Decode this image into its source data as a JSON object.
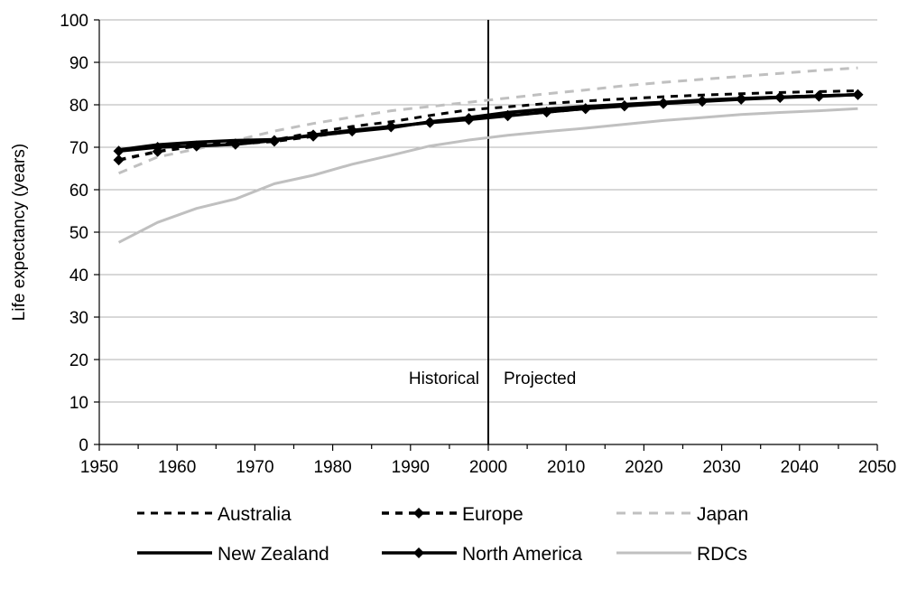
{
  "chart_data": {
    "type": "line",
    "title": "",
    "xlabel": "",
    "ylabel": "Life expectancy (years)",
    "xlim": [
      1950,
      2050
    ],
    "ylim": [
      0,
      100
    ],
    "xticks": [
      1950,
      1960,
      1970,
      1980,
      1990,
      2000,
      2010,
      2020,
      2030,
      2040,
      2050
    ],
    "yticks": [
      0,
      10,
      20,
      30,
      40,
      50,
      60,
      70,
      80,
      90,
      100
    ],
    "grid": "horizontal",
    "legend": "bottom",
    "divider": {
      "x": 2000,
      "left_label": "Historical",
      "right_label": "Projected"
    },
    "x": [
      1952.5,
      1957.5,
      1962.5,
      1967.5,
      1972.5,
      1977.5,
      1982.5,
      1987.5,
      1992.5,
      1997.5,
      2002.5,
      2007.5,
      2012.5,
      2017.5,
      2022.5,
      2027.5,
      2032.5,
      2037.5,
      2042.5,
      2047.5
    ],
    "series": [
      {
        "name": "Australia",
        "color": "#000000",
        "style": "dashed",
        "marker": "none",
        "values": [
          69.3,
          70.4,
          70.9,
          71.1,
          71.7,
          73.5,
          74.9,
          76.0,
          77.5,
          78.8,
          79.5,
          80.3,
          80.9,
          81.4,
          81.9,
          82.3,
          82.6,
          82.9,
          83.1,
          83.3
        ]
      },
      {
        "name": "Europe",
        "color": "#000000",
        "style": "dashed",
        "marker": "diamond",
        "values": [
          67.0,
          69.0,
          70.3,
          70.8,
          71.4,
          72.6,
          73.8,
          74.8,
          75.9,
          76.8,
          77.5,
          78.3,
          79.1,
          79.8,
          80.4,
          80.9,
          81.4,
          81.8,
          82.1,
          82.4
        ]
      },
      {
        "name": "Japan",
        "color": "#c0c0c0",
        "style": "dashed",
        "marker": "none",
        "values": [
          63.9,
          67.7,
          69.6,
          71.6,
          73.8,
          75.6,
          77.1,
          78.6,
          79.6,
          80.6,
          81.6,
          82.6,
          83.5,
          84.5,
          85.3,
          86.0,
          86.7,
          87.4,
          88.1,
          88.7
        ]
      },
      {
        "name": "New Zealand",
        "color": "#000000",
        "style": "solid",
        "marker": "none",
        "values": [
          69.4,
          70.6,
          71.2,
          71.6,
          71.8,
          72.7,
          73.7,
          74.6,
          76.0,
          77.0,
          78.2,
          79.0,
          79.6,
          80.1,
          80.6,
          81.1,
          81.5,
          81.8,
          82.1,
          82.4
        ]
      },
      {
        "name": "North America",
        "color": "#000000",
        "style": "solid",
        "marker": "diamond",
        "values": [
          69.1,
          70.0,
          70.3,
          70.7,
          71.6,
          72.9,
          74.0,
          74.9,
          75.8,
          76.5,
          77.4,
          78.3,
          79.1,
          79.7,
          80.3,
          80.8,
          81.3,
          81.7,
          82.0,
          82.4
        ]
      },
      {
        "name": "RDCs",
        "color": "#c0c0c0",
        "style": "solid",
        "marker": "none",
        "values": [
          47.6,
          52.3,
          55.6,
          57.8,
          61.4,
          63.4,
          66.0,
          68.1,
          70.3,
          71.7,
          72.8,
          73.7,
          74.5,
          75.4,
          76.3,
          77.0,
          77.7,
          78.2,
          78.6,
          79.1
        ]
      }
    ]
  }
}
